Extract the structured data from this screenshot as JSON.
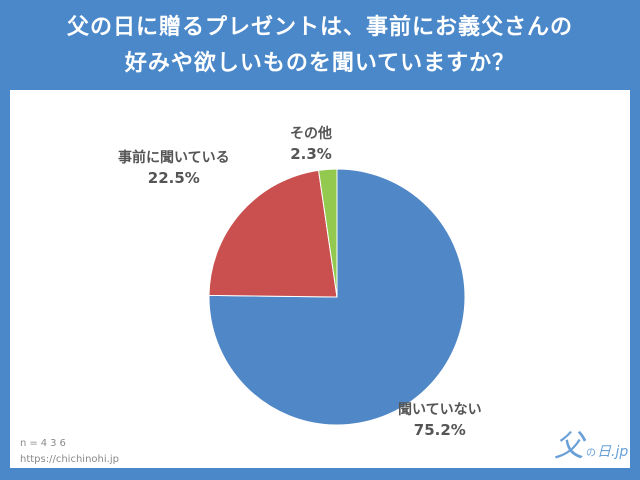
{
  "title_line1": "父の日に贈るプレゼントは、事前にお義父さんの",
  "title_line2": "好みや欲しいものを聞いていますか？",
  "sample_size": "n=436",
  "source_url": "https://chichinohi.jp",
  "logo": {
    "mark": "父",
    "small": "の",
    "suffix": "日.jp"
  },
  "colors": {
    "background": "#4a88c9",
    "blue": "#4f87c7",
    "red": "#c9504f",
    "green": "#92c94e"
  },
  "chart_data": {
    "type": "pie",
    "slices": [
      {
        "label": "聞いていない",
        "value": 75.2,
        "display": "75.2%",
        "color": "#4f87c7"
      },
      {
        "label": "事前に聞いている",
        "value": 22.5,
        "display": "22.5%",
        "color": "#c9504f"
      },
      {
        "label": "その他",
        "value": 2.3,
        "display": "2.3%",
        "color": "#92c94e"
      }
    ],
    "start": "top",
    "direction": "clockwise"
  }
}
